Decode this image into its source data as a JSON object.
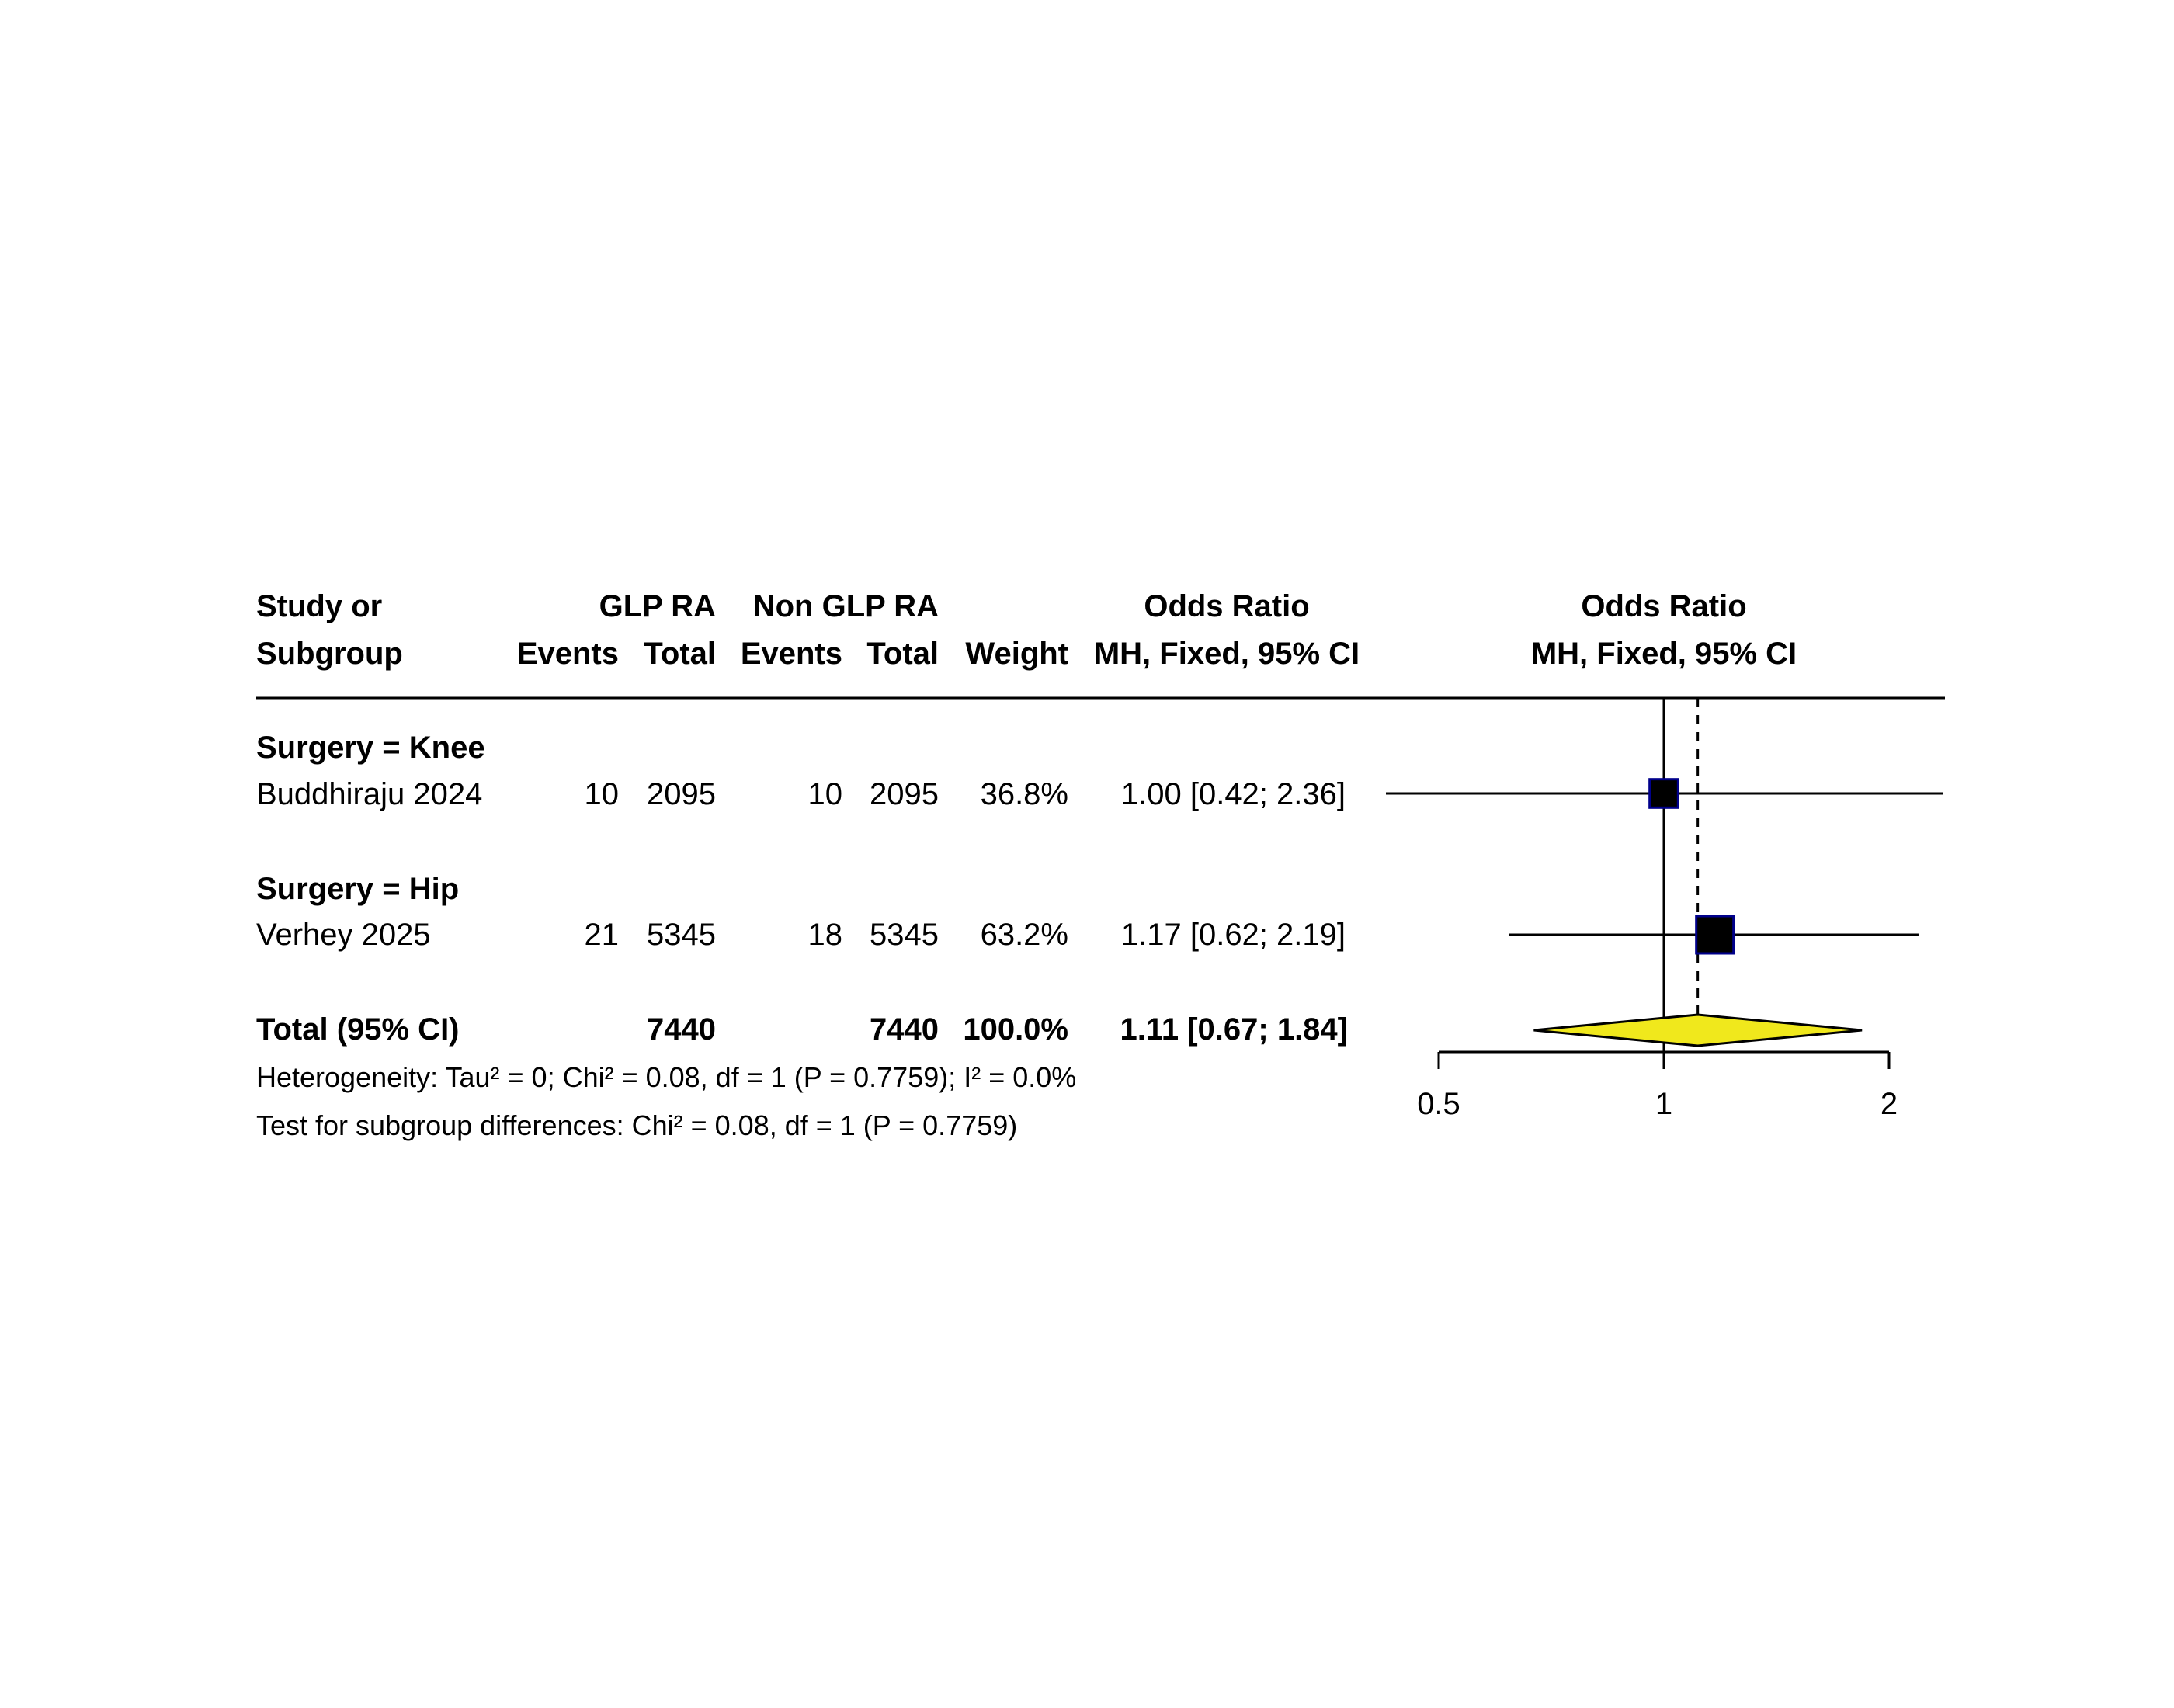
{
  "header": {
    "study_l1": "Study or",
    "study_l2": "Subgroup",
    "exp_group": "GLP RA",
    "ctrl_group": "Non GLP RA",
    "events": "Events",
    "total": "Total",
    "weight": "Weight",
    "or_title": "Odds Ratio",
    "or_method": "MH, Fixed, 95% CI",
    "plot_title": "Odds Ratio",
    "plot_method": "MH, Fixed, 95% CI"
  },
  "subgroups": [
    {
      "label": "Surgery = Knee",
      "study": "Buddhiraju 2024",
      "exp_events": "10",
      "exp_total": "2095",
      "ctrl_events": "10",
      "ctrl_total": "2095",
      "weight": "36.8%",
      "ci_text": "1.00 [0.42; 2.36]"
    },
    {
      "label": "Surgery = Hip",
      "study": "Verhey 2025",
      "exp_events": "21",
      "exp_total": "5345",
      "ctrl_events": "18",
      "ctrl_total": "5345",
      "weight": "63.2%",
      "ci_text": "1.17 [0.62; 2.19]"
    }
  ],
  "total": {
    "label": "Total (95% CI)",
    "exp_total": "7440",
    "ctrl_total": "7440",
    "weight": "100.0%",
    "ci_text": "1.11 [0.67; 1.84]"
  },
  "footer": {
    "heterogeneity": "Heterogeneity: Tau² = 0; Chi² = 0.08, df = 1 (P = 0.7759); I² = 0.0%",
    "subgroup_test": "Test for subgroup differences: Chi² = 0.08, df = 1 (P = 0.7759)"
  },
  "chart_data": {
    "type": "scatter",
    "scale": "log",
    "xlim": [
      0.5,
      2
    ],
    "ticks": [
      "0.5",
      "1",
      "2"
    ],
    "null_value": 1,
    "pooled_estimate": 1.11,
    "studies": [
      {
        "name": "Buddhiraju 2024",
        "or": 1.0,
        "lower": 0.42,
        "upper": 2.36,
        "weight": 36.8
      },
      {
        "name": "Verhey 2025",
        "or": 1.17,
        "lower": 0.62,
        "upper": 2.19,
        "weight": 63.2
      }
    ],
    "pooled": {
      "name": "Total (95% CI)",
      "or": 1.11,
      "lower": 0.67,
      "upper": 1.84
    },
    "colors": {
      "square": "#000000",
      "square_border": "#00008b",
      "diamond": "#f0e81c"
    }
  }
}
